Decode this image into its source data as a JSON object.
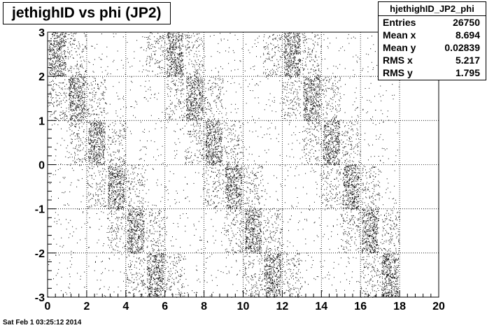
{
  "chart_data": {
    "type": "scatter",
    "title": "jethighID vs phi (JP2)",
    "xlim": [
      0,
      20
    ],
    "ylim": [
      -3,
      3
    ],
    "x_ticks": [
      "0",
      "2",
      "4",
      "6",
      "8",
      "10",
      "12",
      "14",
      "16",
      "18",
      "20"
    ],
    "y_ticks": [
      "-3",
      "-2",
      "-1",
      "0",
      "1",
      "2",
      "3"
    ],
    "grid": true,
    "seed": 12345,
    "dense_cells": [
      {
        "x": [
          0,
          1
        ],
        "y": [
          2,
          3
        ]
      },
      {
        "x": [
          1,
          2
        ],
        "y": [
          1,
          2
        ]
      },
      {
        "x": [
          2,
          3
        ],
        "y": [
          0,
          1
        ]
      },
      {
        "x": [
          3,
          4
        ],
        "y": [
          -1,
          0
        ]
      },
      {
        "x": [
          4,
          5
        ],
        "y": [
          -2,
          -1
        ]
      },
      {
        "x": [
          5,
          6
        ],
        "y": [
          -3,
          -2
        ]
      },
      {
        "x": [
          6,
          7
        ],
        "y": [
          2,
          3
        ]
      },
      {
        "x": [
          7,
          8
        ],
        "y": [
          1,
          2
        ]
      },
      {
        "x": [
          8,
          9
        ],
        "y": [
          0,
          1
        ]
      },
      {
        "x": [
          9,
          10
        ],
        "y": [
          -1,
          0
        ]
      },
      {
        "x": [
          10,
          11
        ],
        "y": [
          -2,
          -1
        ]
      },
      {
        "x": [
          11,
          12
        ],
        "y": [
          -3,
          -2
        ]
      },
      {
        "x": [
          12,
          13
        ],
        "y": [
          2,
          3
        ]
      },
      {
        "x": [
          13,
          14
        ],
        "y": [
          1,
          2
        ]
      },
      {
        "x": [
          14,
          15
        ],
        "y": [
          0,
          1
        ]
      },
      {
        "x": [
          15,
          16
        ],
        "y": [
          -1,
          0
        ]
      },
      {
        "x": [
          16,
          17
        ],
        "y": [
          -2,
          -1
        ]
      },
      {
        "x": [
          17,
          18
        ],
        "y": [
          -3,
          -2
        ]
      }
    ],
    "dense_density": 450,
    "medium_density": 130,
    "sparse_density": 18,
    "point_color": "#000000",
    "grid_color": "#000000",
    "background": "#ffffff"
  },
  "stats": {
    "name": "hjethighID_JP2_phi",
    "rows": [
      {
        "key": "Entries",
        "value": "26750"
      },
      {
        "key": "Mean x",
        "value": "8.694"
      },
      {
        "key": "Mean y",
        "value": "0.02839"
      },
      {
        "key": "RMS x",
        "value": "5.217"
      },
      {
        "key": "RMS y",
        "value": "1.795"
      }
    ]
  },
  "timestamp": "Sat Feb  1 03:25:12 2014"
}
